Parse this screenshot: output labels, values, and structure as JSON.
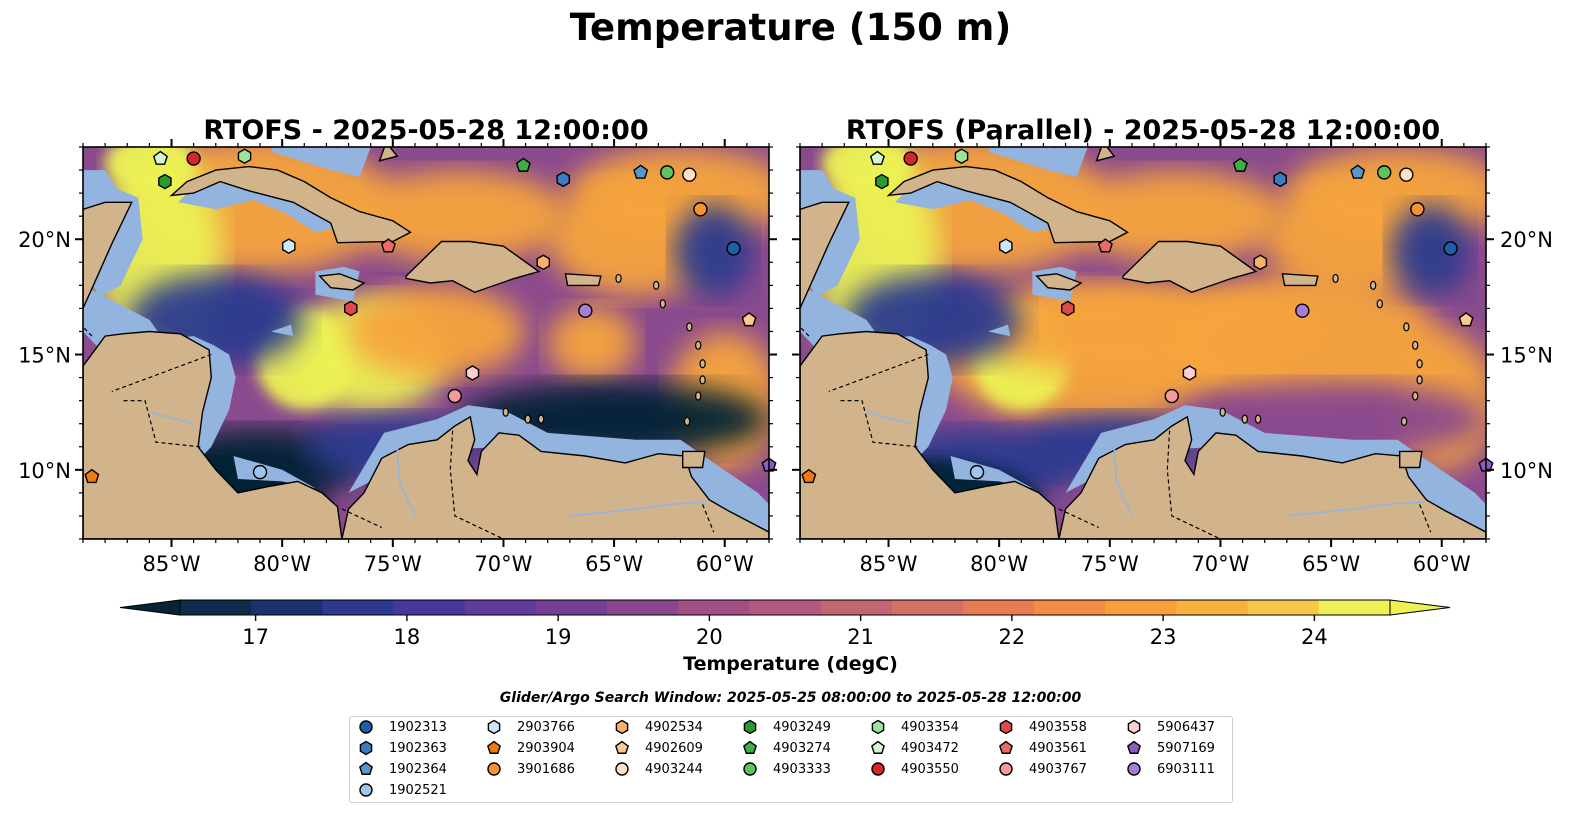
{
  "suptitle": "Temperature (150 m)",
  "window_note": "Glider/Argo Search Window: 2025-05-25 08:00:00 to 2025-05-28 12:00:00",
  "chart_data": [
    {
      "type": "heatmap",
      "title": "RTOFS - 2025-05-28 12:00:00",
      "xlabel": "",
      "ylabel": "",
      "xlim": [
        -89,
        -58
      ],
      "ylim": [
        7,
        24
      ],
      "x_ticks": [
        -85,
        -80,
        -75,
        -70,
        -65,
        -60
      ],
      "x_tick_labels": [
        "85°W",
        "80°W",
        "75°W",
        "70°W",
        "65°W",
        "60°W"
      ],
      "y_ticks": [
        10,
        15,
        20
      ],
      "y_tick_labels": [
        "10°N",
        "15°N",
        "20°N"
      ],
      "y_labels_side": "left"
    },
    {
      "type": "heatmap",
      "title": "RTOFS (Parallel) - 2025-05-28 12:00:00",
      "xlabel": "",
      "ylabel": "",
      "xlim": [
        -89,
        -58
      ],
      "ylim": [
        7,
        24
      ],
      "x_ticks": [
        -85,
        -80,
        -75,
        -70,
        -65,
        -60
      ],
      "x_tick_labels": [
        "85°W",
        "80°W",
        "75°W",
        "70°W",
        "65°W",
        "60°W"
      ],
      "y_ticks": [
        10,
        15,
        20
      ],
      "y_tick_labels": [
        "10°N",
        "15°N",
        "20°N"
      ],
      "y_labels_side": "right"
    }
  ],
  "colorbar": {
    "label": "Temperature (degC)",
    "range": [
      16.5,
      24.5
    ],
    "ticks": [
      17,
      18,
      19,
      20,
      21,
      22,
      23,
      24
    ],
    "tick_labels": [
      "17",
      "18",
      "19",
      "20",
      "21",
      "22",
      "23",
      "24"
    ],
    "colors": [
      "#0f2a4a",
      "#1b326e",
      "#2d3891",
      "#46399e",
      "#5e3c9c",
      "#753f98",
      "#8c4690",
      "#a24f88",
      "#b5597e",
      "#c46573",
      "#d57065",
      "#e77c52",
      "#f58c44",
      "#f79f3c",
      "#f8b13c",
      "#f6c84a",
      "#ecf255"
    ],
    "under_color": "#082236",
    "over_color": "#ecf255"
  },
  "map_colors": {
    "land": "#d2b48c",
    "shelf": "#94b4e0",
    "deep": "#062236",
    "cold": "#2c3a8f",
    "warm": "#f6a43c",
    "hot": "#ecf255",
    "mid": "#8a4a8e"
  },
  "markers": [
    {
      "id": "1902313",
      "shape": "circle",
      "color": "#1f5fa8",
      "lon": -59.6,
      "lat": 19.6
    },
    {
      "id": "1902363",
      "shape": "hexagon",
      "color": "#3a7cc0",
      "lon": -67.3,
      "lat": 22.6
    },
    {
      "id": "1902364",
      "shape": "pentagon",
      "color": "#5a95d0",
      "lon": -63.8,
      "lat": 22.9
    },
    {
      "id": "1902521",
      "shape": "circle",
      "color": "#9ec5ea",
      "lon": -81.0,
      "lat": 9.9
    },
    {
      "id": "2903766",
      "shape": "hexagon",
      "color": "#cde6fb",
      "lon": -79.7,
      "lat": 19.7
    },
    {
      "id": "2903904",
      "shape": "pentagon",
      "color": "#f07a10",
      "lon": -88.6,
      "lat": 9.7
    },
    {
      "id": "3901686",
      "shape": "circle",
      "color": "#f59234",
      "lon": -61.1,
      "lat": 21.3
    },
    {
      "id": "4902534",
      "shape": "hexagon",
      "color": "#f9b06a",
      "lon": -68.2,
      "lat": 19.0
    },
    {
      "id": "4902609",
      "shape": "pentagon",
      "color": "#fcc990",
      "lon": -58.9,
      "lat": 16.5
    },
    {
      "id": "4903244",
      "shape": "circle",
      "color": "#fde2c2",
      "lon": -61.6,
      "lat": 22.8
    },
    {
      "id": "4903249",
      "shape": "hexagon",
      "color": "#2a9a2f",
      "lon": -85.3,
      "lat": 22.5
    },
    {
      "id": "4903274",
      "shape": "pentagon",
      "color": "#3fae48",
      "lon": -69.1,
      "lat": 23.2
    },
    {
      "id": "4903333",
      "shape": "circle",
      "color": "#5fc25c",
      "lon": -62.6,
      "lat": 22.9
    },
    {
      "id": "4903354",
      "shape": "hexagon",
      "color": "#9fe29a",
      "lon": -81.7,
      "lat": 23.6
    },
    {
      "id": "4903472",
      "shape": "pentagon",
      "color": "#d4f5cf",
      "lon": -85.5,
      "lat": 23.5
    },
    {
      "id": "4903550",
      "shape": "circle",
      "color": "#d62728",
      "lon": -84.0,
      "lat": 23.5
    },
    {
      "id": "4903558",
      "shape": "hexagon",
      "color": "#e04848",
      "lon": -76.9,
      "lat": 17.0
    },
    {
      "id": "4903561",
      "shape": "pentagon",
      "color": "#ea6a6a",
      "lon": -75.2,
      "lat": 19.7
    },
    {
      "id": "4903767",
      "shape": "circle",
      "color": "#f39a9a",
      "lon": -72.2,
      "lat": 13.2
    },
    {
      "id": "5906437",
      "shape": "hexagon",
      "color": "#fbcfcf",
      "lon": -71.4,
      "lat": 14.2
    },
    {
      "id": "5907169",
      "shape": "pentagon",
      "color": "#8b5cc0",
      "lon": -58.0,
      "lat": 10.2
    },
    {
      "id": "6903111",
      "shape": "circle",
      "color": "#a57dd6",
      "lon": -66.3,
      "lat": 16.9
    }
  ]
}
